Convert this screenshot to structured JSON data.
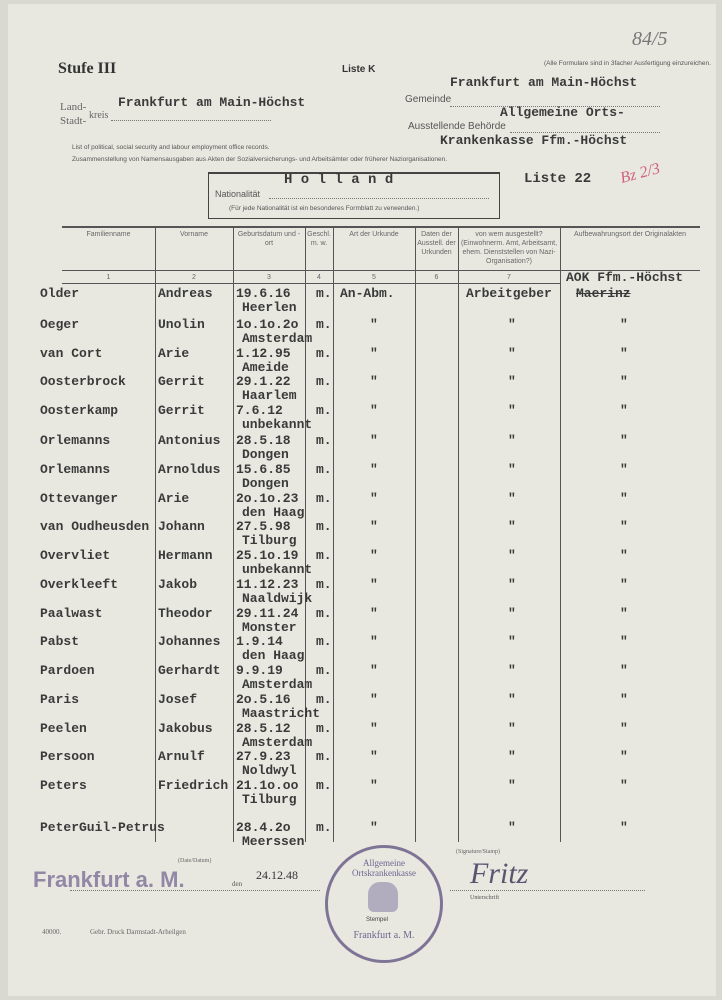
{
  "header": {
    "archive_number": "84/5",
    "stufe": "Stufe III",
    "liste_k": "Liste K",
    "note": "(Alle Formulare sind in 3facher Ausfertigung einzureichen.",
    "gemeinde_value_top": "Frankfurt am Main-Höchst",
    "land_label": "Land-",
    "stadt_label": "Stadt-",
    "kreis_label": "kreis",
    "kreis_value": "Frankfurt am Main-Höchst",
    "gemeinde_label": "Gemeinde",
    "behoerde_value_1": "Allgemeine Orts-",
    "behoerde_label": "Ausstellende Behörde",
    "behoerde_value_2": "Krankenkasse Ffm.-Höchst",
    "english_title": "List of political, social security and labour employment office records.",
    "german_title": "Zusammenstellung von Namensausgaben aus Akten der Sozialversicherungs- und Arbeitsämter oder früherer Naziorganisationen.",
    "nationality_value": "H o l l a n d",
    "nationality_label": "Nationalität",
    "nationality_note": "(Für jede Nationalität ist ein besonderes Formblatt zu verwenden.)",
    "liste_number": "Liste 22",
    "red_annotation": "Bz 2/3"
  },
  "table": {
    "columns": [
      {
        "label": "Familienname",
        "num": "1"
      },
      {
        "label": "Vorname",
        "num": "2"
      },
      {
        "label": "Geburtsdatum und -ort",
        "num": "3"
      },
      {
        "label": "Geschl. m. w.",
        "num": "4"
      },
      {
        "label": "Art der Urkunde",
        "num": "5"
      },
      {
        "label": "Daten der Ausstell. der Urkunden",
        "num": "6"
      },
      {
        "label": "von wem ausgestellt? (Einwohnerm. Amt, Arbeitsamt, ehem. Dienststellen von Nazi-Organisation?)",
        "num": "7"
      },
      {
        "label": "Aufbewahrungsort der Originalakten",
        "num": "AOK Ffm.-Höchst"
      }
    ],
    "rows": [
      {
        "family": "Older",
        "given": "Andreas",
        "date": "19.6.16",
        "place": "Heerlen",
        "sex": "m.",
        "type": "An-Abm.",
        "issuer": "Arbeitgeber",
        "storage": "Maerinz"
      },
      {
        "family": "Oeger",
        "given": "Unolin",
        "date": "1o.1o.2o",
        "place": "Amsterdam",
        "sex": "m.",
        "type": "\"",
        "issuer": "\"",
        "storage": "\""
      },
      {
        "family": "van Cort",
        "given": "Arie",
        "date": "1.12.95",
        "place": "Ameide",
        "sex": "m.",
        "type": "\"",
        "issuer": "\"",
        "storage": "\""
      },
      {
        "family": "Oosterbrock",
        "given": "Gerrit",
        "date": "29.1.22",
        "place": "Haarlem",
        "sex": "m.",
        "type": "\"",
        "issuer": "\"",
        "storage": "\""
      },
      {
        "family": "Oosterkamp",
        "given": "Gerrit",
        "date": "7.6.12",
        "place": "unbekannt",
        "sex": "m.",
        "type": "\"",
        "issuer": "\"",
        "storage": "\""
      },
      {
        "family": "Orlemanns",
        "given": "Antonius",
        "date": "28.5.18",
        "place": "Dongen",
        "sex": "m.",
        "type": "\"",
        "issuer": "\"",
        "storage": "\""
      },
      {
        "family": "Orlemanns",
        "given": "Arnoldus",
        "date": "15.6.85",
        "place": "Dongen",
        "sex": "m.",
        "type": "\"",
        "issuer": "\"",
        "storage": "\""
      },
      {
        "family": "Ottevanger",
        "given": "Arie",
        "date": "2o.1o.23",
        "place": "den Haag",
        "sex": "m.",
        "type": "\"",
        "issuer": "\"",
        "storage": "\""
      },
      {
        "family": "van Oudheusden",
        "given": "Johann",
        "date": "27.5.98",
        "place": "Tilburg",
        "sex": "m.",
        "type": "\"",
        "issuer": "\"",
        "storage": "\""
      },
      {
        "family": "Overvliet",
        "given": "Hermann",
        "date": "25.1o.19",
        "place": "unbekannt",
        "sex": "m.",
        "type": "\"",
        "issuer": "\"",
        "storage": "\""
      },
      {
        "family": "Overkleeft",
        "given": "Jakob",
        "date": "11.12.23",
        "place": "Naaldwijk",
        "sex": "m.",
        "type": "\"",
        "issuer": "\"",
        "storage": "\""
      },
      {
        "family": "Paalwast",
        "given": "Theodor",
        "date": "29.11.24",
        "place": "Monster",
        "sex": "m.",
        "type": "\"",
        "issuer": "\"",
        "storage": "\""
      },
      {
        "family": "Pabst",
        "given": "Johannes",
        "date": "1.9.14",
        "place": "den Haag",
        "sex": "m.",
        "type": "\"",
        "issuer": "\"",
        "storage": "\""
      },
      {
        "family": "Pardoen",
        "given": "Gerhardt",
        "date": "9.9.19",
        "place": "Amsterdam",
        "sex": "m.",
        "type": "\"",
        "issuer": "\"",
        "storage": "\""
      },
      {
        "family": "Paris",
        "given": "Josef",
        "date": "2o.5.16",
        "place": "Maastricht",
        "sex": "m.",
        "type": "\"",
        "issuer": "\"",
        "storage": "\""
      },
      {
        "family": "Peelen",
        "given": "Jakobus",
        "date": "28.5.12",
        "place": "Amsterdam",
        "sex": "m.",
        "type": "\"",
        "issuer": "\"",
        "storage": "\""
      },
      {
        "family": "Persoon",
        "given": "Arnulf",
        "date": "27.9.23",
        "place": "Noldwyl",
        "sex": "m.",
        "type": "\"",
        "issuer": "\"",
        "storage": "\""
      },
      {
        "family": "Peters",
        "given": "Friedrich",
        "date": "21.1o.oo",
        "place": "Tilburg",
        "sex": "m.",
        "type": "\"",
        "issuer": "\"",
        "storage": "\""
      },
      {
        "family": "PeterGuil-Petrus",
        "given": "",
        "date": "28.4.2o",
        "place": "Meerssen",
        "sex": "m.",
        "type": "\"",
        "issuer": "\"",
        "storage": "\""
      }
    ]
  },
  "footer": {
    "date_label": "(Date/Datum)",
    "place_stamp": "Frankfurt a. M.",
    "den_label": "den",
    "date_value": "24.12.48",
    "stamp_label": "Stempel",
    "stamp_text_top": "Allgemeine Ortskrankenkasse",
    "stamp_text_bottom": "Frankfurt a. M.",
    "signature_label": "(Signature/Stamp)",
    "unterschrift_label": "Unterschrift",
    "signature": "Fritz",
    "print_run": "40000.",
    "printer": "Gebr. Druck Darmstadt-Arheilgen"
  },
  "colors": {
    "paper": "#e8e8e1",
    "typewriter": "#3a3a3a",
    "stamp": "#6f6590",
    "red_pencil": "#d0607a"
  }
}
